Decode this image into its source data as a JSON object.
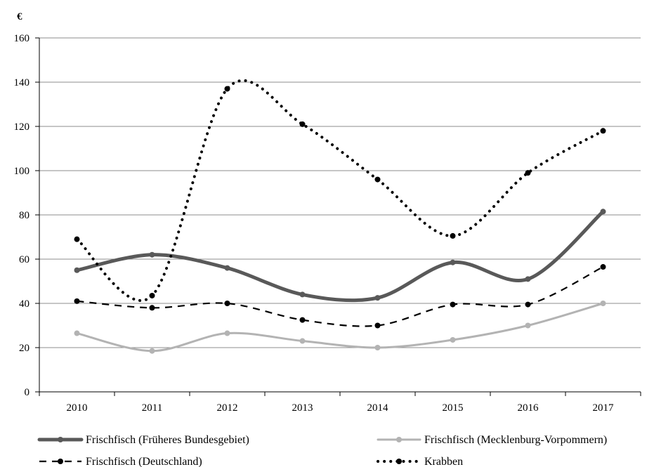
{
  "chart_data": {
    "type": "line",
    "ylabel": "€",
    "ylim": [
      0,
      160
    ],
    "yticks": [
      0,
      20,
      40,
      60,
      80,
      100,
      120,
      140,
      160
    ],
    "grid": "horizontal",
    "legend_position": "bottom",
    "categories": [
      "2010",
      "2011",
      "2012",
      "2013",
      "2014",
      "2015",
      "2016",
      "2017"
    ],
    "series": [
      {
        "name": "Frischfisch (Früheres Bundesgebiet)",
        "values": [
          55,
          62,
          56,
          44,
          42.5,
          58.5,
          51,
          81.5
        ],
        "color": "#595959",
        "style": "solid-thick"
      },
      {
        "name": "Frischfisch (Mecklenburg-Vorpommern)",
        "values": [
          26.5,
          18.5,
          26.5,
          23,
          20,
          23.5,
          30,
          40
        ],
        "color": "#b3b3b3",
        "style": "solid"
      },
      {
        "name": "Frischfisch (Deutschland)",
        "values": [
          41,
          38,
          40,
          32.5,
          30,
          39.5,
          39.5,
          56.5
        ],
        "color": "#000000",
        "style": "dashed"
      },
      {
        "name": "Krabben",
        "values": [
          69,
          43.5,
          137,
          121,
          96,
          70.5,
          99,
          118
        ],
        "color": "#000000",
        "style": "dotted"
      }
    ]
  }
}
